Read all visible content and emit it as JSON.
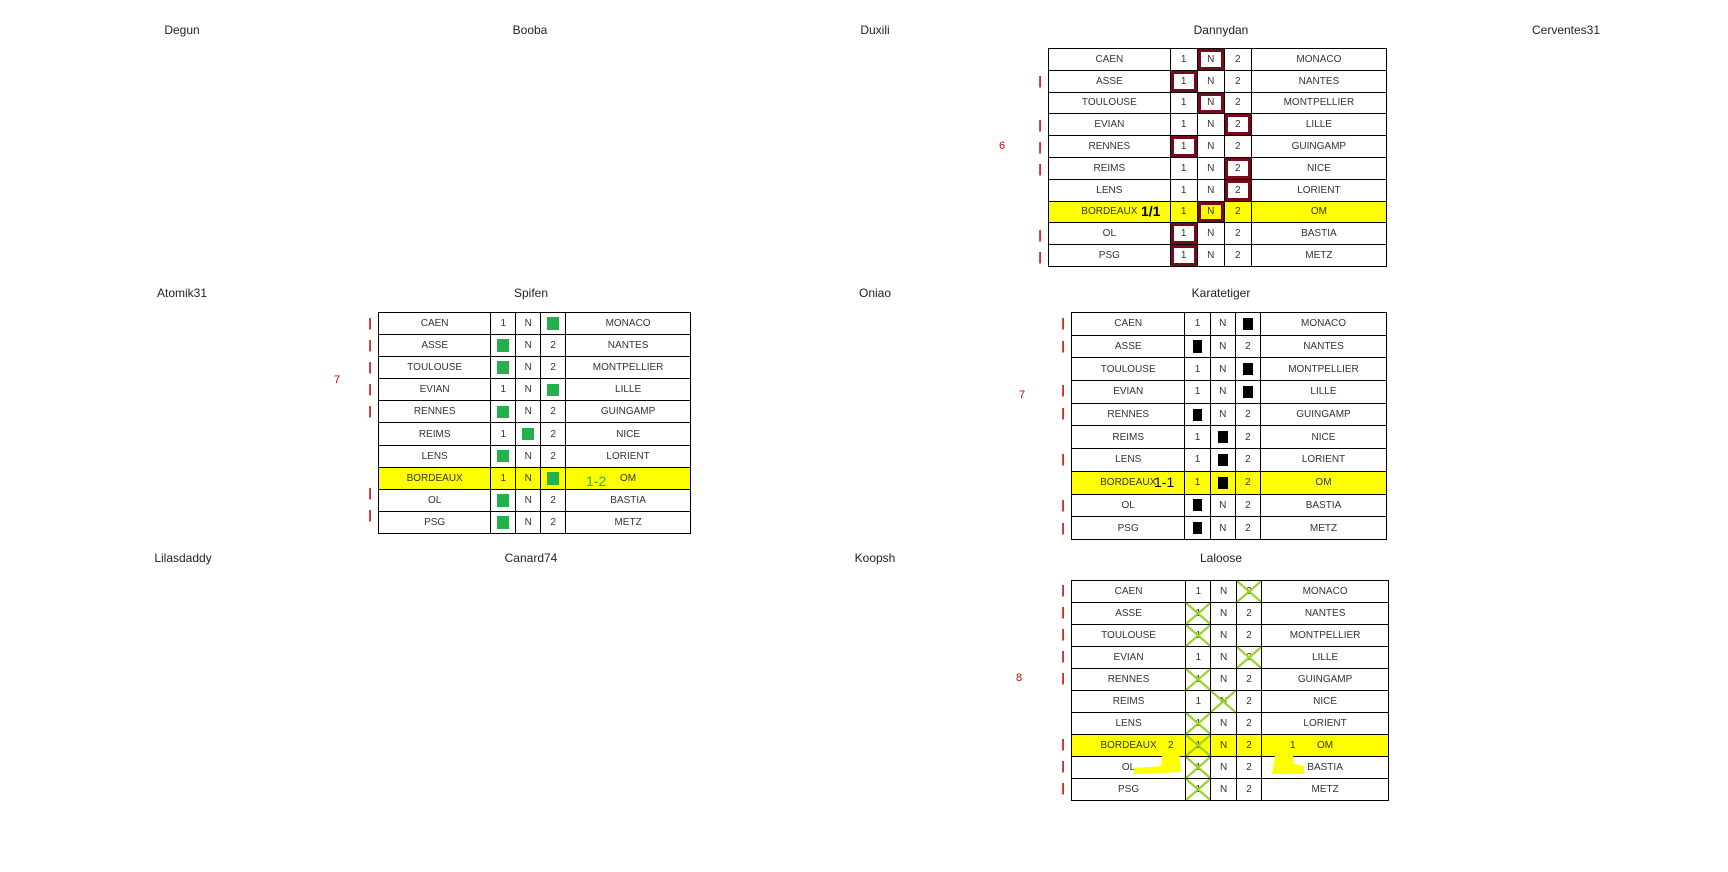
{
  "players": [
    "Degun",
    "Booba",
    "Duxili",
    "Dannydan",
    "Cerventes31",
    "Atomik31",
    "Spifen",
    "Oniao",
    "Karatetiger",
    "Lilasdaddy",
    "Canard74",
    "Koopsh",
    "Laloose"
  ],
  "matches": [
    {
      "home": "CAEN",
      "c1": "1",
      "cN": "N",
      "c2": "2",
      "away": "MONACO"
    },
    {
      "home": "ASSE",
      "c1": "1",
      "cN": "N",
      "c2": "2",
      "away": "NANTES"
    },
    {
      "home": "TOULOUSE",
      "c1": "1",
      "cN": "N",
      "c2": "2",
      "away": "MONTPELLIER"
    },
    {
      "home": "EVIAN",
      "c1": "1",
      "cN": "N",
      "c2": "2",
      "away": "LILLE"
    },
    {
      "home": "RENNES",
      "c1": "1",
      "cN": "N",
      "c2": "2",
      "away": "GUINGAMP"
    },
    {
      "home": "REIMS",
      "c1": "1",
      "cN": "N",
      "c2": "2",
      "away": "NICE"
    },
    {
      "home": "LENS",
      "c1": "1",
      "cN": "N",
      "c2": "2",
      "away": "LORIENT"
    },
    {
      "home": "BORDEAUX",
      "c1": "1",
      "cN": "N",
      "c2": "2",
      "away": "OM"
    },
    {
      "home": "OL",
      "c1": "1",
      "cN": "N",
      "c2": "2",
      "away": "BASTIA"
    },
    {
      "home": "PSG",
      "c1": "1",
      "cN": "N",
      "c2": "2",
      "away": "METZ"
    }
  ],
  "grids": {
    "dannydan": {
      "score": "6",
      "bordeaux_note": "1/1",
      "picks": [
        "N",
        "1",
        "N",
        "2",
        "1",
        "2",
        "2",
        "N",
        "1",
        "1"
      ],
      "pick_color": "#7a0a1a"
    },
    "spifen": {
      "score": "7",
      "bordeaux_note": "1-2",
      "picks": [
        "2",
        "1",
        "1",
        "2",
        "1",
        "N",
        "1",
        "2",
        "1",
        "1"
      ],
      "pick_color": "#22b14c"
    },
    "karatetiger": {
      "score": "7",
      "bordeaux_note": "1-1",
      "picks": [
        "2",
        "1",
        "2",
        "2",
        "1",
        "N",
        "N",
        "N",
        "1",
        "1"
      ],
      "pick_color": "#000000"
    },
    "laloose": {
      "score": "8",
      "bordeaux_note_home": "2",
      "bordeaux_note_away": "1",
      "picks": [
        "2",
        "1",
        "1",
        "2",
        "1",
        "N",
        "1",
        "1",
        "1",
        "1"
      ],
      "pick_color": "#9ad42a"
    }
  },
  "colors": {
    "highlight": "#ffff00",
    "tick": "#d00000"
  }
}
